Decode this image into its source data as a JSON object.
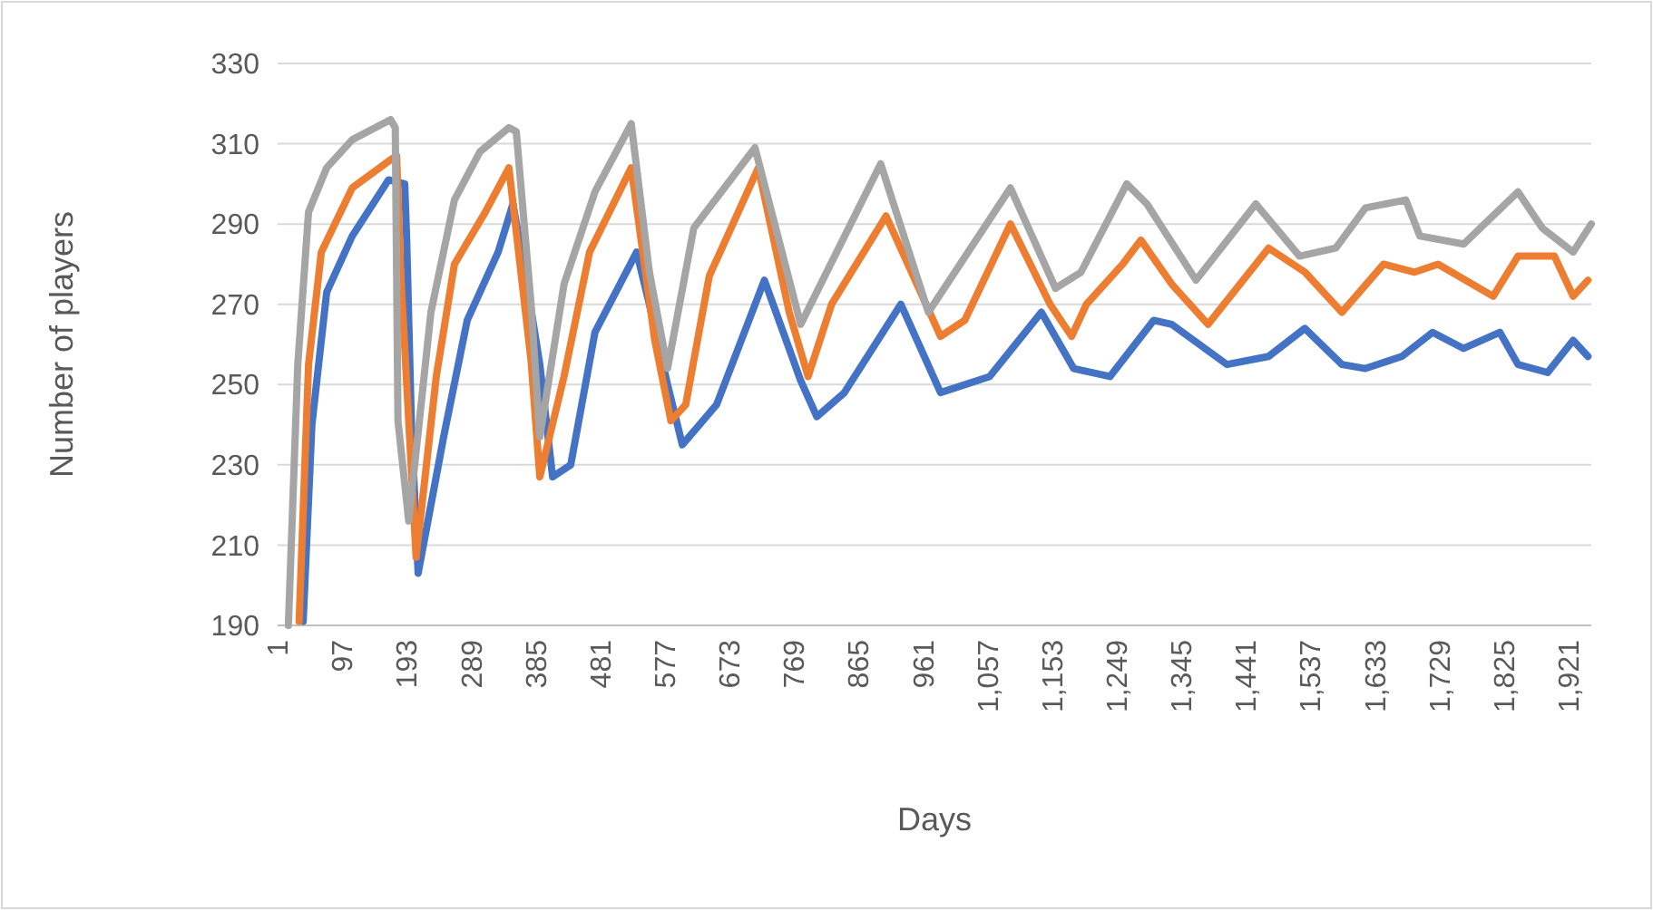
{
  "chart_data": {
    "type": "line",
    "xlabel": "Days",
    "ylabel": "Number of players",
    "xlim": [
      1,
      1955
    ],
    "ylim": [
      190,
      330
    ],
    "yticks": [
      190,
      210,
      230,
      250,
      270,
      290,
      310,
      330
    ],
    "xticks": [
      1,
      97,
      193,
      289,
      385,
      481,
      577,
      673,
      769,
      865,
      961,
      {
        "value": 1057,
        "label": "1,057"
      },
      {
        "value": 1153,
        "label": "1,153"
      },
      {
        "value": 1249,
        "label": "1,249"
      },
      {
        "value": 1345,
        "label": "1,345"
      },
      {
        "value": 1441,
        "label": "1,441"
      },
      {
        "value": 1537,
        "label": "1,537"
      },
      {
        "value": 1633,
        "label": "1,633"
      },
      {
        "value": 1729,
        "label": "1,729"
      },
      {
        "value": 1825,
        "label": "1,825"
      },
      {
        "value": 1921,
        "label": "1,921"
      }
    ],
    "grid": "y",
    "line_style": "solid",
    "marker": "none",
    "series": [
      {
        "color": "#4472c4",
        "x": [
          39,
          52,
          74,
          112,
          166,
          190,
          193,
          200,
          210,
          248,
          283,
          329,
          351,
          372,
          391,
          410,
          437,
          473,
          535,
          554,
          581,
          603,
          654,
          725,
          779,
          803,
          844,
          928,
          987,
          1060,
          1137,
          1185,
          1239,
          1304,
          1331,
          1413,
          1475,
          1529,
          1584,
          1619,
          1673,
          1719,
          1765,
          1819,
          1846,
          1890,
          1928,
          1950
        ],
        "values": [
          191,
          240,
          273,
          287,
          301,
          300,
          286,
          240,
          203,
          237,
          266,
          283,
          295,
          275,
          255,
          227,
          230,
          263,
          283,
          270,
          250,
          235,
          245,
          276,
          251,
          242,
          248,
          270,
          248,
          252,
          268,
          254,
          252,
          266,
          265,
          255,
          257,
          264,
          255,
          254,
          257,
          263,
          259,
          263,
          255,
          253,
          261,
          257
        ]
      },
      {
        "color": "#ed7d31",
        "x": [
          33,
          47,
          66,
          112,
          169,
          178,
          184,
          207,
          237,
          264,
          310,
          345,
          378,
          391,
          427,
          465,
          527,
          562,
          586,
          608,
          643,
          716,
          762,
          790,
          825,
          906,
          952,
          987,
          1023,
          1091,
          1150,
          1182,
          1204,
          1258,
          1285,
          1331,
          1385,
          1475,
          1529,
          1584,
          1646,
          1692,
          1727,
          1809,
          1846,
          1900,
          1928,
          1950
        ],
        "values": [
          191,
          255,
          283,
          299,
          306,
          307,
          278,
          207,
          252,
          280,
          293,
          304,
          256,
          227,
          252,
          283,
          304,
          261,
          241,
          245,
          277,
          304,
          268,
          252,
          270,
          292,
          275,
          262,
          266,
          290,
          270,
          262,
          270,
          280,
          286,
          275,
          265,
          284,
          278,
          268,
          280,
          278,
          280,
          272,
          282,
          282,
          272,
          276
        ]
      },
      {
        "color": "#a5a5a5",
        "x": [
          17,
          31,
          47,
          74,
          112,
          169,
          176,
          180,
          196,
          229,
          264,
          302,
          345,
          356,
          378,
          391,
          427,
          473,
          527,
          554,
          581,
          620,
          711,
          779,
          898,
          969,
          1091,
          1158,
          1196,
          1264,
          1294,
          1367,
          1456,
          1521,
          1575,
          1619,
          1679,
          1700,
          1765,
          1846,
          1882,
          1928,
          1955
        ],
        "values": [
          190,
          255,
          293,
          304,
          311,
          316,
          314,
          241,
          216,
          268,
          296,
          308,
          314,
          313,
          270,
          237,
          275,
          298,
          315,
          278,
          254,
          289,
          309,
          265,
          305,
          268,
          299,
          274,
          278,
          300,
          295,
          276,
          295,
          282,
          284,
          294,
          296,
          287,
          285,
          298,
          289,
          283,
          290
        ]
      }
    ]
  }
}
